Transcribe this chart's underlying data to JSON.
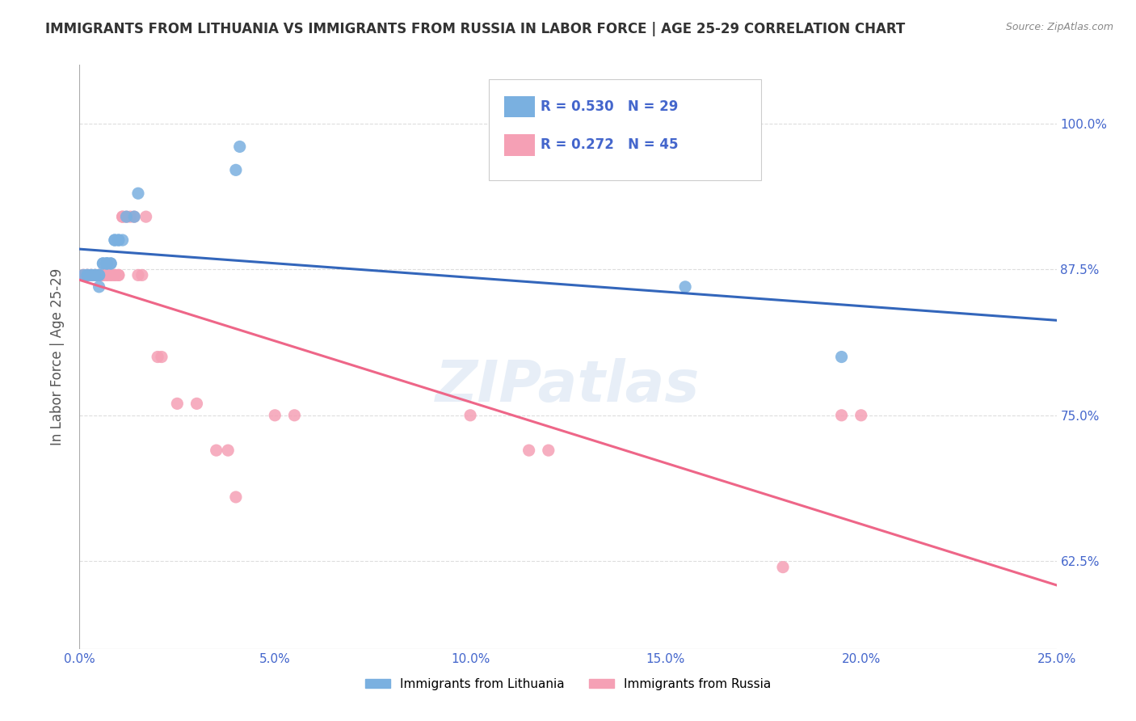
{
  "title": "IMMIGRANTS FROM LITHUANIA VS IMMIGRANTS FROM RUSSIA IN LABOR FORCE | AGE 25-29 CORRELATION CHART",
  "source": "Source: ZipAtlas.com",
  "ylabel": "In Labor Force | Age 25-29",
  "xlabel_ticks": [
    "0.0%",
    "5.0%",
    "10.0%",
    "15.0%",
    "20.0%",
    "25.0%"
  ],
  "xlabel_vals": [
    0.0,
    0.05,
    0.1,
    0.15,
    0.2,
    0.25
  ],
  "ylabel_ticks": [
    "62.5%",
    "75.0%",
    "87.5%",
    "100.0%"
  ],
  "ylabel_vals": [
    0.625,
    0.75,
    0.875,
    1.0
  ],
  "xlim": [
    0.0,
    0.25
  ],
  "ylim": [
    0.55,
    1.05
  ],
  "legend1_label": "R = 0.530   N = 29",
  "legend2_label": "R = 0.272   N = 45",
  "R_lith": 0.53,
  "N_lith": 29,
  "R_russ": 0.272,
  "N_russ": 45,
  "lith_x": [
    0.001,
    0.002,
    0.002,
    0.003,
    0.003,
    0.004,
    0.004,
    0.005,
    0.005,
    0.005,
    0.006,
    0.006,
    0.007,
    0.007,
    0.007,
    0.008,
    0.008,
    0.009,
    0.009,
    0.01,
    0.01,
    0.011,
    0.012,
    0.014,
    0.015,
    0.04,
    0.041,
    0.155,
    0.195
  ],
  "lith_y": [
    0.87,
    0.87,
    0.87,
    0.87,
    0.87,
    0.87,
    0.87,
    0.87,
    0.87,
    0.86,
    0.88,
    0.88,
    0.88,
    0.88,
    0.88,
    0.88,
    0.88,
    0.9,
    0.9,
    0.9,
    0.9,
    0.9,
    0.92,
    0.92,
    0.94,
    0.96,
    0.98,
    0.86,
    0.8
  ],
  "russ_x": [
    0.001,
    0.001,
    0.002,
    0.002,
    0.002,
    0.003,
    0.003,
    0.004,
    0.004,
    0.005,
    0.005,
    0.005,
    0.006,
    0.006,
    0.007,
    0.007,
    0.008,
    0.008,
    0.009,
    0.009,
    0.01,
    0.01,
    0.011,
    0.011,
    0.012,
    0.013,
    0.014,
    0.015,
    0.016,
    0.017,
    0.02,
    0.021,
    0.025,
    0.03,
    0.035,
    0.038,
    0.04,
    0.05,
    0.055,
    0.1,
    0.115,
    0.12,
    0.18,
    0.195,
    0.2
  ],
  "russ_y": [
    0.87,
    0.87,
    0.87,
    0.87,
    0.87,
    0.87,
    0.87,
    0.87,
    0.87,
    0.87,
    0.87,
    0.87,
    0.87,
    0.87,
    0.87,
    0.87,
    0.87,
    0.87,
    0.87,
    0.87,
    0.87,
    0.87,
    0.92,
    0.92,
    0.92,
    0.92,
    0.92,
    0.87,
    0.87,
    0.92,
    0.8,
    0.8,
    0.76,
    0.76,
    0.72,
    0.72,
    0.68,
    0.75,
    0.75,
    0.75,
    0.72,
    0.72,
    0.62,
    0.75,
    0.75
  ],
  "watermark": "ZIPatlas",
  "bg_color": "#ffffff",
  "dot_size": 120,
  "lith_dot_color": "#7ab0e0",
  "russ_dot_color": "#f5a0b5",
  "lith_line_color": "#3366bb",
  "russ_line_color": "#ee6688",
  "grid_color": "#dddddd",
  "title_color": "#333333",
  "axis_color": "#4466cc",
  "right_tick_color": "#4466cc",
  "bottom_legend_lith": "Immigrants from Lithuania",
  "bottom_legend_russ": "Immigrants from Russia"
}
